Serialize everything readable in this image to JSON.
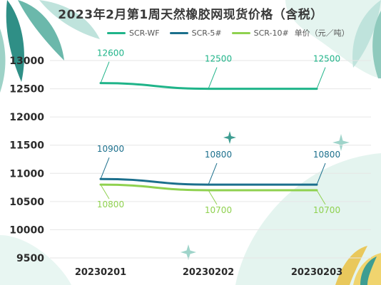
{
  "chart_data": {
    "type": "line",
    "title": "2023年2月第1周天然橡胶网现货价格（含税）",
    "categories": [
      "20230201",
      "20230202",
      "20230203"
    ],
    "series": [
      {
        "name": "SCR-WF",
        "values": [
          12600,
          12500,
          12500
        ],
        "labels": [
          "12600",
          "12500",
          "12500"
        ],
        "color": "#1fb489",
        "label_position": "above"
      },
      {
        "name": "SCR-5#",
        "values": [
          10900,
          10800,
          10800
        ],
        "labels": [
          "10900",
          "10800",
          "10800"
        ],
        "color": "#1b6f8c",
        "label_position": "above"
      },
      {
        "name": "SCR-10#",
        "values": [
          10800,
          10700,
          10700
        ],
        "labels": [
          "10800",
          "10700",
          "10700"
        ],
        "color": "#8fd14f",
        "label_position": "below"
      }
    ],
    "unit_label": "单价（元／吨）",
    "yticks": [
      "13000",
      "12500",
      "12000",
      "11500",
      "11000",
      "10500",
      "10000",
      "9500"
    ],
    "ylim": [
      9500,
      13000
    ],
    "grid": true,
    "legend_position": "top"
  },
  "colors": {
    "tick_text": "#2b2b2b",
    "grid": "#e6e6e6",
    "leaf_dark": "#2f8f86",
    "leaf_light": "#bfe3dc",
    "blob": "#dff1ec"
  }
}
